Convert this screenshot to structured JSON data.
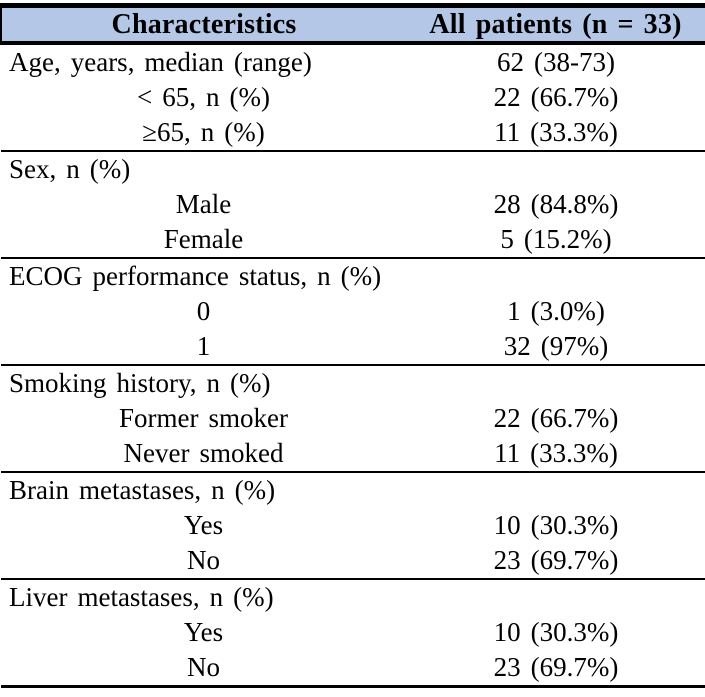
{
  "colors": {
    "header_bg": "#b4c7e7",
    "border": "#000000",
    "text": "#000000",
    "page_bg": "#ffffff"
  },
  "table": {
    "columns": [
      {
        "label": "Characteristics"
      },
      {
        "label": "All patients (n = 33)"
      }
    ],
    "sections": [
      {
        "rows": [
          {
            "label": "Age, years, median (range)",
            "value": "62 (38-73)",
            "sub": false
          },
          {
            "label": "< 65, n (%)",
            "value": "22 (66.7%)",
            "sub": true
          },
          {
            "label": "≥65, n (%)",
            "value": "11 (33.3%)",
            "sub": true
          }
        ]
      },
      {
        "rows": [
          {
            "label": "Sex, n (%)",
            "value": "",
            "sub": false
          },
          {
            "label": "Male",
            "value": "28 (84.8%)",
            "sub": true
          },
          {
            "label": "Female",
            "value": "5 (15.2%)",
            "sub": true
          }
        ]
      },
      {
        "rows": [
          {
            "label": "ECOG performance status, n (%)",
            "value": "",
            "sub": false
          },
          {
            "label": "0",
            "value": "1 (3.0%)",
            "sub": true
          },
          {
            "label": "1",
            "value": "32 (97%)",
            "sub": true
          }
        ]
      },
      {
        "rows": [
          {
            "label": "Smoking history, n (%)",
            "value": "",
            "sub": false
          },
          {
            "label": "Former smoker",
            "value": "22 (66.7%)",
            "sub": true
          },
          {
            "label": "Never smoked",
            "value": "11 (33.3%)",
            "sub": true
          }
        ]
      },
      {
        "rows": [
          {
            "label": "Brain metastases, n (%)",
            "value": "",
            "sub": false
          },
          {
            "label": "Yes",
            "value": "10 (30.3%)",
            "sub": true
          },
          {
            "label": "No",
            "value": "23 (69.7%)",
            "sub": true
          }
        ]
      },
      {
        "rows": [
          {
            "label": "Liver metastases, n (%)",
            "value": "",
            "sub": false
          },
          {
            "label": "Yes",
            "value": "10 (30.3%)",
            "sub": true
          },
          {
            "label": "No",
            "value": "23 (69.7%)",
            "sub": true
          }
        ]
      }
    ]
  }
}
